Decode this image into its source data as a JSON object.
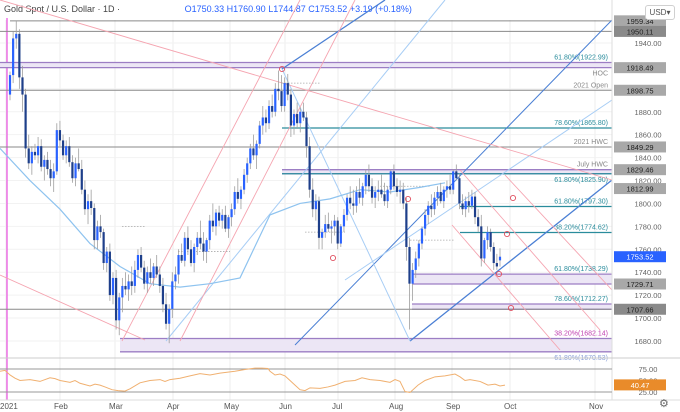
{
  "header": {
    "symbol": "Gold Spot / U.S. Dollar · 1D ·",
    "open": "O1750.33",
    "high": "H1760.90",
    "low": "L1744.87",
    "close": "C1753.52",
    "change": "+3.19 (+0.18%)"
  },
  "currency_button": "USD▾",
  "settings_icon": "⚙",
  "colors": {
    "bull": "#2962ff",
    "bear": "#1e3f8a",
    "wick": "#9e9e9e",
    "fib_teal": "#2a8c9c",
    "zone_purple": "#9c7ec4",
    "zone_fill": "#ece6f5",
    "pitchfork_blue": "#4a7fd4",
    "light_blue": "#a7cdf5",
    "ma_line": "#8ec3ef",
    "channel_pink": "#f5a4b0",
    "gray_level": "#8a8a8a",
    "rsi_line": "#f0b070",
    "rsi_badge": "#e98b2a",
    "last_price_badge": "#2962ff",
    "vline_magenta": "#e94ee0"
  },
  "chart_data": {
    "type": "candlestick",
    "title": "Gold Spot / U.S. Dollar · 1D",
    "instrument": "XAU/USD",
    "timeframe": "1D",
    "last": {
      "open": 1750.33,
      "high": 1760.9,
      "low": 1744.87,
      "close": 1753.52,
      "change": 3.19,
      "change_pct": 0.18
    },
    "x_ticks": [
      "2021",
      "Feb",
      "Mar",
      "Apr",
      "May",
      "Jun",
      "Jul",
      "Aug",
      "Sep",
      "Oct",
      "Nov"
    ],
    "y_ticks": [
      1940.0,
      1920.0,
      1900.0,
      1880.0,
      1860.0,
      1840.0,
      1820.0,
      1800.0,
      1780.0,
      1760.0,
      1740.0,
      1720.0,
      1700.0,
      1680.0
    ],
    "ylim": [
      1672,
      1965
    ],
    "price_labels": [
      {
        "value": "1959.34",
        "style": "gray"
      },
      {
        "value": "1950.11",
        "style": "dark"
      },
      {
        "value": "1918.49",
        "style": "gray"
      },
      {
        "value": "1898.75",
        "style": "gray"
      },
      {
        "value": "1849.29",
        "style": "gray"
      },
      {
        "value": "1829.46",
        "style": "gray"
      },
      {
        "value": "1812.99",
        "style": "gray"
      },
      {
        "value": "1753.52",
        "style": "blue"
      },
      {
        "value": "1729.71",
        "style": "gray"
      },
      {
        "value": "1707.66",
        "style": "dark"
      }
    ],
    "levels": [
      {
        "label": "",
        "price": 1959.34,
        "kind": "gray"
      },
      {
        "label": "",
        "price": 1950.11,
        "kind": "gray"
      },
      {
        "label": "61.80%(1922.99)",
        "price": 1922.99,
        "kind": "zone_top"
      },
      {
        "label": "HOC",
        "price": 1918.49,
        "kind": "zone_bottom"
      },
      {
        "label": "2021 Open",
        "price": 1898.75,
        "kind": "gray"
      },
      {
        "label": "78.60%(1865.80)",
        "price": 1865.8,
        "kind": "fib"
      },
      {
        "label": "2021 HWC",
        "price": 1849.29,
        "kind": "gray"
      },
      {
        "label": "July HWC",
        "price": 1829.46,
        "kind": "zone_top"
      },
      {
        "label": "61.80%(1825.90)",
        "price": 1825.9,
        "kind": "fib"
      },
      {
        "label": "61.80%(1797.30)",
        "price": 1797.3,
        "kind": "fib"
      },
      {
        "label": "38.20%(1774.62)",
        "price": 1774.62,
        "kind": "fib"
      },
      {
        "label": "61.80%(1738.29)",
        "price": 1738.29,
        "kind": "zone_top"
      },
      {
        "label": "",
        "price": 1729.71,
        "kind": "zone_bottom"
      },
      {
        "label": "78.60%(1712.27)",
        "price": 1712.27,
        "kind": "zone_top"
      },
      {
        "label": "",
        "price": 1707.66,
        "kind": "gray"
      },
      {
        "label": "38.20%(1682.14)",
        "price": 1682.14,
        "kind": "zone_top_pink"
      },
      {
        "label": "61.80%(1670.53)",
        "price": 1670.53,
        "kind": "zone_bottom"
      }
    ],
    "candles": [
      [
        1895,
        1915,
        1890,
        1912
      ],
      [
        1912,
        1950,
        1905,
        1944
      ],
      [
        1944,
        1959,
        1935,
        1948
      ],
      [
        1948,
        1952,
        1900,
        1910
      ],
      [
        1910,
        1920,
        1880,
        1895
      ],
      [
        1895,
        1900,
        1840,
        1848
      ],
      [
        1848,
        1860,
        1830,
        1835
      ],
      [
        1835,
        1850,
        1825,
        1845
      ],
      [
        1845,
        1852,
        1838,
        1842
      ],
      [
        1842,
        1858,
        1835,
        1850
      ],
      [
        1850,
        1856,
        1828,
        1832
      ],
      [
        1832,
        1842,
        1820,
        1838
      ],
      [
        1838,
        1845,
        1825,
        1830
      ],
      [
        1830,
        1838,
        1815,
        1822
      ],
      [
        1822,
        1835,
        1810,
        1828
      ],
      [
        1828,
        1870,
        1825,
        1864
      ],
      [
        1864,
        1872,
        1850,
        1855
      ],
      [
        1855,
        1860,
        1838,
        1842
      ],
      [
        1842,
        1855,
        1835,
        1850
      ],
      [
        1850,
        1858,
        1832,
        1836
      ],
      [
        1836,
        1842,
        1818,
        1822
      ],
      [
        1822,
        1840,
        1815,
        1835
      ],
      [
        1835,
        1848,
        1828,
        1830
      ],
      [
        1830,
        1838,
        1808,
        1812
      ],
      [
        1812,
        1820,
        1790,
        1795
      ],
      [
        1795,
        1808,
        1782,
        1802
      ],
      [
        1802,
        1812,
        1790,
        1796
      ],
      [
        1796,
        1800,
        1760,
        1768
      ],
      [
        1768,
        1785,
        1760,
        1780
      ],
      [
        1780,
        1790,
        1770,
        1775
      ],
      [
        1775,
        1778,
        1742,
        1748
      ],
      [
        1748,
        1762,
        1740,
        1758
      ],
      [
        1758,
        1765,
        1715,
        1720
      ],
      [
        1720,
        1740,
        1712,
        1735
      ],
      [
        1735,
        1742,
        1690,
        1698
      ],
      [
        1698,
        1722,
        1685,
        1718
      ],
      [
        1718,
        1735,
        1705,
        1728
      ],
      [
        1728,
        1740,
        1720,
        1725
      ],
      [
        1725,
        1738,
        1715,
        1732
      ],
      [
        1732,
        1745,
        1720,
        1728
      ],
      [
        1728,
        1750,
        1722,
        1742
      ],
      [
        1742,
        1760,
        1735,
        1755
      ],
      [
        1755,
        1762,
        1740,
        1744
      ],
      [
        1744,
        1750,
        1725,
        1730
      ],
      [
        1730,
        1745,
        1722,
        1740
      ],
      [
        1740,
        1752,
        1730,
        1735
      ],
      [
        1735,
        1748,
        1728,
        1745
      ],
      [
        1745,
        1755,
        1735,
        1738
      ],
      [
        1738,
        1745,
        1722,
        1728
      ],
      [
        1728,
        1735,
        1705,
        1712
      ],
      [
        1712,
        1722,
        1690,
        1695
      ],
      [
        1695,
        1712,
        1678,
        1708
      ],
      [
        1708,
        1740,
        1700,
        1732
      ],
      [
        1732,
        1745,
        1725,
        1738
      ],
      [
        1738,
        1760,
        1730,
        1755
      ],
      [
        1755,
        1765,
        1748,
        1750
      ],
      [
        1750,
        1775,
        1745,
        1770
      ],
      [
        1770,
        1780,
        1755,
        1760
      ],
      [
        1760,
        1768,
        1745,
        1748
      ],
      [
        1748,
        1765,
        1740,
        1762
      ],
      [
        1762,
        1775,
        1755,
        1770
      ],
      [
        1770,
        1785,
        1760,
        1765
      ],
      [
        1765,
        1775,
        1750,
        1758
      ],
      [
        1758,
        1770,
        1748,
        1768
      ],
      [
        1768,
        1790,
        1760,
        1785
      ],
      [
        1785,
        1800,
        1775,
        1780
      ],
      [
        1780,
        1795,
        1772,
        1792
      ],
      [
        1792,
        1798,
        1780,
        1785
      ],
      [
        1785,
        1795,
        1778,
        1790
      ],
      [
        1790,
        1798,
        1775,
        1778
      ],
      [
        1778,
        1790,
        1770,
        1788
      ],
      [
        1788,
        1800,
        1780,
        1795
      ],
      [
        1795,
        1815,
        1790,
        1810
      ],
      [
        1810,
        1822,
        1800,
        1804
      ],
      [
        1804,
        1815,
        1795,
        1812
      ],
      [
        1812,
        1830,
        1808,
        1825
      ],
      [
        1825,
        1840,
        1818,
        1835
      ],
      [
        1835,
        1852,
        1830,
        1848
      ],
      [
        1848,
        1860,
        1838,
        1842
      ],
      [
        1842,
        1855,
        1830,
        1852
      ],
      [
        1852,
        1872,
        1848,
        1868
      ],
      [
        1868,
        1885,
        1860,
        1875
      ],
      [
        1875,
        1882,
        1862,
        1870
      ],
      [
        1870,
        1890,
        1865,
        1885
      ],
      [
        1885,
        1895,
        1875,
        1880
      ],
      [
        1880,
        1905,
        1876,
        1900
      ],
      [
        1900,
        1916,
        1890,
        1898
      ],
      [
        1898,
        1912,
        1880,
        1885
      ],
      [
        1885,
        1910,
        1880,
        1905
      ],
      [
        1905,
        1913,
        1890,
        1895
      ],
      [
        1895,
        1900,
        1858,
        1868
      ],
      [
        1868,
        1882,
        1860,
        1878
      ],
      [
        1878,
        1888,
        1865,
        1870
      ],
      [
        1870,
        1884,
        1862,
        1880
      ],
      [
        1880,
        1888,
        1872,
        1875
      ],
      [
        1875,
        1880,
        1840,
        1850
      ],
      [
        1850,
        1858,
        1805,
        1812
      ],
      [
        1812,
        1822,
        1788,
        1795
      ],
      [
        1795,
        1808,
        1785,
        1802
      ],
      [
        1802,
        1806,
        1760,
        1770
      ],
      [
        1770,
        1778,
        1760,
        1775
      ],
      [
        1775,
        1790,
        1770,
        1782
      ],
      [
        1782,
        1792,
        1775,
        1778
      ],
      [
        1778,
        1785,
        1765,
        1780
      ],
      [
        1780,
        1790,
        1772,
        1785
      ],
      [
        1785,
        1788,
        1760,
        1765
      ],
      [
        1765,
        1782,
        1762,
        1780
      ],
      [
        1780,
        1795,
        1775,
        1790
      ],
      [
        1790,
        1808,
        1785,
        1805
      ],
      [
        1805,
        1815,
        1795,
        1800
      ],
      [
        1800,
        1812,
        1790,
        1798
      ],
      [
        1798,
        1815,
        1792,
        1810
      ],
      [
        1810,
        1822,
        1800,
        1805
      ],
      [
        1805,
        1818,
        1798,
        1815
      ],
      [
        1815,
        1830,
        1808,
        1825
      ],
      [
        1825,
        1834,
        1810,
        1815
      ],
      [
        1815,
        1822,
        1800,
        1805
      ],
      [
        1805,
        1815,
        1796,
        1810
      ],
      [
        1810,
        1820,
        1802,
        1812
      ],
      [
        1812,
        1825,
        1805,
        1808
      ],
      [
        1808,
        1818,
        1798,
        1802
      ],
      [
        1802,
        1815,
        1796,
        1812
      ],
      [
        1812,
        1830,
        1808,
        1828
      ],
      [
        1828,
        1834,
        1812,
        1815
      ],
      [
        1815,
        1822,
        1806,
        1810
      ],
      [
        1810,
        1820,
        1800,
        1812
      ],
      [
        1812,
        1818,
        1795,
        1800
      ],
      [
        1800,
        1805,
        1750,
        1762
      ],
      [
        1762,
        1770,
        1690,
        1730
      ],
      [
        1730,
        1748,
        1715,
        1742
      ],
      [
        1742,
        1758,
        1735,
        1752
      ],
      [
        1752,
        1768,
        1745,
        1765
      ],
      [
        1765,
        1780,
        1760,
        1778
      ],
      [
        1778,
        1795,
        1772,
        1790
      ],
      [
        1790,
        1802,
        1782,
        1798
      ],
      [
        1798,
        1808,
        1788,
        1795
      ],
      [
        1795,
        1810,
        1790,
        1805
      ],
      [
        1805,
        1815,
        1798,
        1810
      ],
      [
        1810,
        1818,
        1800,
        1802
      ],
      [
        1802,
        1815,
        1796,
        1812
      ],
      [
        1812,
        1820,
        1805,
        1815
      ],
      [
        1815,
        1825,
        1808,
        1812
      ],
      [
        1812,
        1830,
        1808,
        1828
      ],
      [
        1828,
        1834,
        1820,
        1822
      ],
      [
        1822,
        1826,
        1795,
        1800
      ],
      [
        1800,
        1808,
        1790,
        1795
      ],
      [
        1795,
        1806,
        1788,
        1802
      ],
      [
        1802,
        1810,
        1792,
        1798
      ],
      [
        1798,
        1812,
        1795,
        1806
      ],
      [
        1806,
        1810,
        1782,
        1788
      ],
      [
        1788,
        1795,
        1775,
        1780
      ],
      [
        1780,
        1790,
        1745,
        1752
      ],
      [
        1752,
        1770,
        1748,
        1768
      ],
      [
        1768,
        1780,
        1760,
        1775
      ],
      [
        1775,
        1778,
        1758,
        1762
      ],
      [
        1762,
        1766,
        1742,
        1748
      ],
      [
        1748,
        1756,
        1742,
        1745
      ],
      [
        1750.33,
        1760.9,
        1744.87,
        1753.52
      ]
    ],
    "ma_series": [
      [
        0,
        1848
      ],
      [
        30,
        1820
      ],
      [
        60,
        1795
      ],
      [
        90,
        1765
      ],
      [
        120,
        1745
      ],
      [
        150,
        1730
      ],
      [
        180,
        1727
      ],
      [
        210,
        1730
      ],
      [
        240,
        1735
      ],
      [
        270,
        1790
      ],
      [
        300,
        1800
      ],
      [
        330,
        1804
      ],
      [
        360,
        1812
      ],
      [
        390,
        1810
      ],
      [
        420,
        1814
      ],
      [
        445,
        1818
      ]
    ],
    "rsi": {
      "label": "RSI",
      "value": "40.47",
      "levels": [
        75,
        50,
        25
      ],
      "tick_labels": [
        "75.00",
        "50.00",
        "25.00"
      ],
      "points": [
        [
          0,
          70
        ],
        [
          5,
          72
        ],
        [
          10,
          62
        ],
        [
          15,
          55
        ],
        [
          20,
          50
        ],
        [
          30,
          52
        ],
        [
          40,
          48
        ],
        [
          50,
          56
        ],
        [
          55,
          54
        ],
        [
          60,
          50
        ],
        [
          70,
          46
        ],
        [
          75,
          50
        ],
        [
          80,
          44
        ],
        [
          90,
          38
        ],
        [
          95,
          42
        ],
        [
          100,
          40
        ],
        [
          105,
          36
        ],
        [
          112,
          30
        ],
        [
          118,
          28
        ],
        [
          125,
          27
        ],
        [
          130,
          32
        ],
        [
          140,
          45
        ],
        [
          150,
          50
        ],
        [
          160,
          52
        ],
        [
          165,
          48
        ],
        [
          170,
          52
        ],
        [
          180,
          55
        ],
        [
          190,
          60
        ],
        [
          200,
          65
        ],
        [
          210,
          62
        ],
        [
          220,
          66
        ],
        [
          235,
          70
        ],
        [
          245,
          74
        ],
        [
          255,
          77
        ],
        [
          262,
          77
        ],
        [
          268,
          76
        ],
        [
          270,
          70
        ],
        [
          275,
          62
        ],
        [
          280,
          64
        ],
        [
          285,
          60
        ],
        [
          290,
          50
        ],
        [
          295,
          40
        ],
        [
          300,
          30
        ],
        [
          305,
          28
        ],
        [
          310,
          34
        ],
        [
          320,
          33
        ],
        [
          328,
          36
        ],
        [
          335,
          40
        ],
        [
          345,
          48
        ],
        [
          355,
          50
        ],
        [
          362,
          56
        ],
        [
          370,
          52
        ],
        [
          380,
          50
        ],
        [
          390,
          46
        ],
        [
          395,
          52
        ],
        [
          400,
          48
        ],
        [
          405,
          26
        ],
        [
          410,
          24
        ],
        [
          418,
          40
        ],
        [
          425,
          50
        ],
        [
          435,
          58
        ],
        [
          445,
          60
        ],
        [
          455,
          64
        ],
        [
          460,
          58
        ],
        [
          465,
          50
        ],
        [
          470,
          52
        ],
        [
          480,
          48
        ],
        [
          488,
          40
        ],
        [
          495,
          42
        ],
        [
          500,
          38
        ],
        [
          505,
          40
        ]
      ]
    }
  }
}
